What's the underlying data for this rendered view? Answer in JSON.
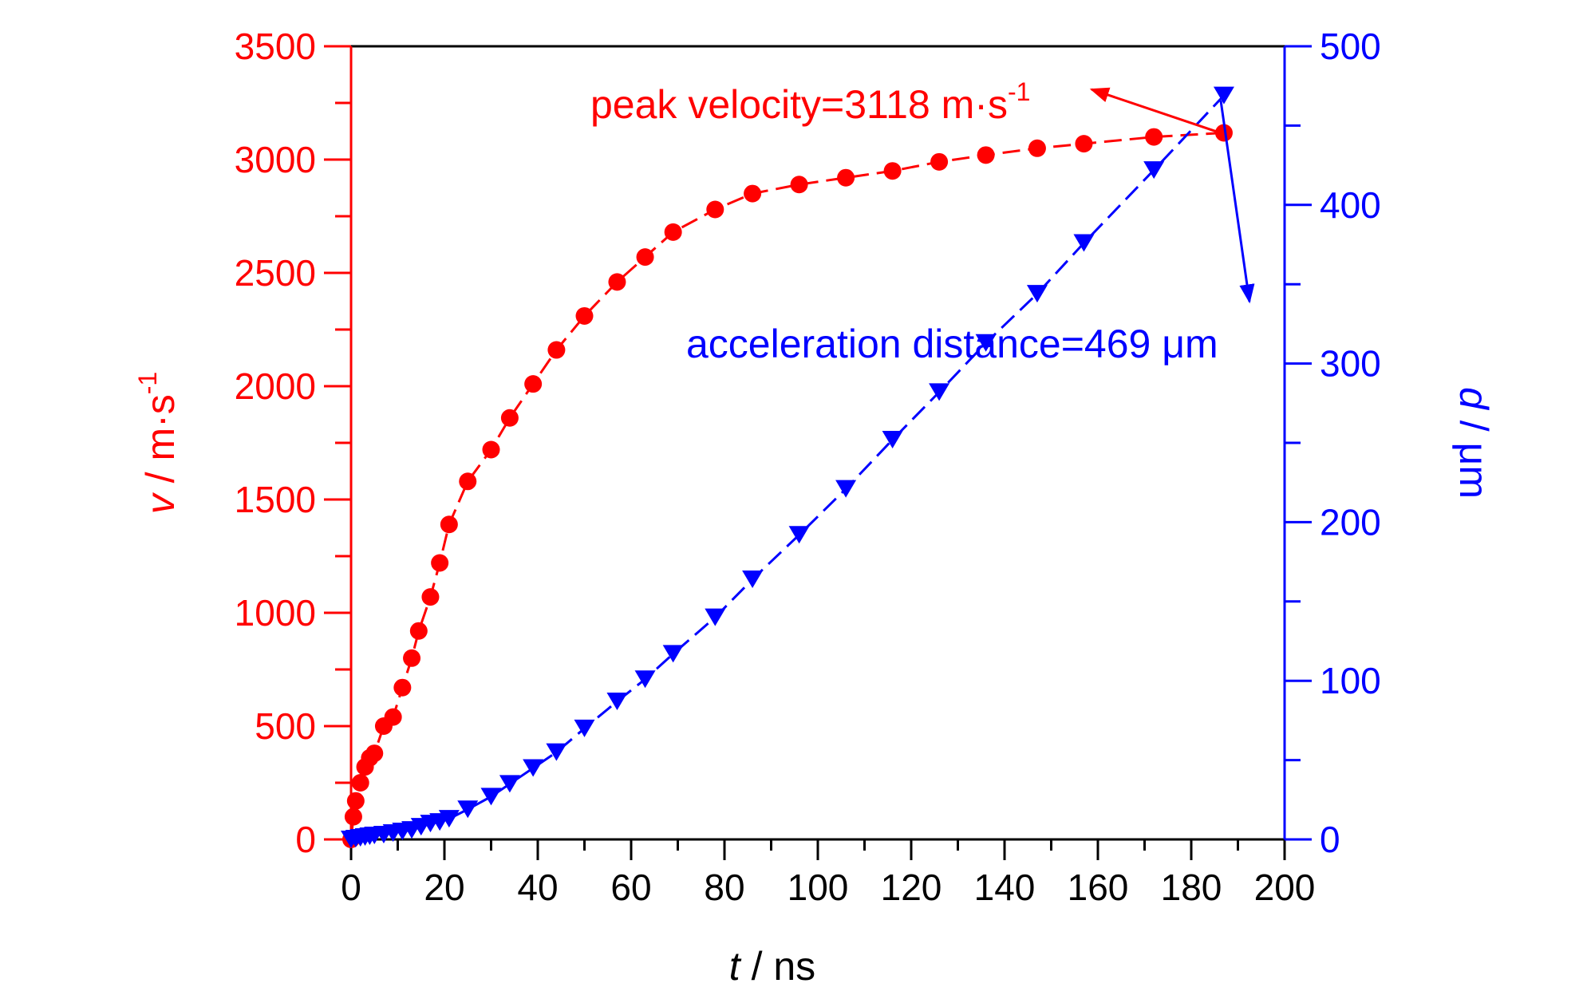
{
  "chart_data": {
    "type": "scatter",
    "title": "",
    "colors": {
      "velocity": "#ff0000",
      "distance": "#0000ff",
      "axis": "#000000"
    },
    "x_axis": {
      "label_italic": "t",
      "label_rest": " / ns",
      "range": [
        0,
        200
      ],
      "ticks": [
        0,
        20,
        40,
        60,
        80,
        100,
        120,
        140,
        160,
        180,
        200
      ],
      "tick_labels": [
        "0",
        "20",
        "40",
        "60",
        "80",
        "100",
        "120",
        "140",
        "160",
        "180",
        "200"
      ],
      "minor_step": 10
    },
    "y_left": {
      "label_italic": "v",
      "label_rest": " / m·s",
      "label_sup": "-1",
      "range": [
        0,
        3500
      ],
      "ticks": [
        0,
        500,
        1000,
        1500,
        2000,
        2500,
        3000,
        3500
      ],
      "tick_labels": [
        "0",
        "500",
        "1000",
        "1500",
        "2000",
        "2500",
        "3000",
        "3500"
      ],
      "minor_step": 250
    },
    "y_right": {
      "label_italic": "d",
      "label_rest": " / μm",
      "range": [
        0,
        500
      ],
      "ticks": [
        0,
        100,
        200,
        300,
        400,
        500
      ],
      "tick_labels": [
        "0",
        "100",
        "200",
        "300",
        "400",
        "500"
      ],
      "minor_step": 50
    },
    "series": [
      {
        "axis": "left",
        "marker": "circle",
        "line": "dashed",
        "points": [
          [
            0,
            0
          ],
          [
            0.5,
            100
          ],
          [
            1,
            170
          ],
          [
            2,
            250
          ],
          [
            3,
            320
          ],
          [
            4,
            360
          ],
          [
            5,
            380
          ],
          [
            7,
            500
          ],
          [
            9,
            540
          ],
          [
            11,
            670
          ],
          [
            13,
            800
          ],
          [
            14.5,
            920
          ],
          [
            17,
            1070
          ],
          [
            19,
            1220
          ],
          [
            21,
            1390
          ],
          [
            25,
            1580
          ],
          [
            30,
            1720
          ],
          [
            34,
            1860
          ],
          [
            39,
            2010
          ],
          [
            44,
            2160
          ],
          [
            50,
            2310
          ],
          [
            57,
            2460
          ],
          [
            63,
            2570
          ],
          [
            69,
            2680
          ],
          [
            78,
            2780
          ],
          [
            86,
            2850
          ],
          [
            96,
            2890
          ],
          [
            106,
            2920
          ],
          [
            116,
            2950
          ],
          [
            126,
            2990
          ],
          [
            136,
            3020
          ],
          [
            147,
            3050
          ],
          [
            157,
            3070
          ],
          [
            172,
            3100
          ],
          [
            187,
            3118
          ]
        ]
      },
      {
        "axis": "right",
        "marker": "triangle-down",
        "line": "dashed",
        "points": [
          [
            0,
            0
          ],
          [
            1,
            0.5
          ],
          [
            2,
            1
          ],
          [
            3,
            1.5
          ],
          [
            4,
            2
          ],
          [
            5,
            2.5
          ],
          [
            7,
            3
          ],
          [
            9,
            4
          ],
          [
            11,
            5
          ],
          [
            13,
            6
          ],
          [
            15,
            8
          ],
          [
            17,
            10
          ],
          [
            19,
            11
          ],
          [
            21,
            13
          ],
          [
            25,
            19
          ],
          [
            30,
            27
          ],
          [
            34,
            35
          ],
          [
            39,
            45
          ],
          [
            44,
            55
          ],
          [
            50,
            70
          ],
          [
            57,
            87
          ],
          [
            63,
            101
          ],
          [
            69,
            117
          ],
          [
            78,
            140
          ],
          [
            86,
            164
          ],
          [
            96,
            192
          ],
          [
            106,
            221
          ],
          [
            116,
            252
          ],
          [
            126,
            282
          ],
          [
            136,
            313
          ],
          [
            147,
            344
          ],
          [
            157,
            376
          ],
          [
            172,
            422
          ],
          [
            187,
            469
          ]
        ]
      }
    ],
    "annotations": [
      {
        "text": "peak velocity=3118 m·s",
        "sup": "-1",
        "color": "#ff0000"
      },
      {
        "text": "acceleration distance=469 μm",
        "color": "#0000ff"
      }
    ]
  }
}
